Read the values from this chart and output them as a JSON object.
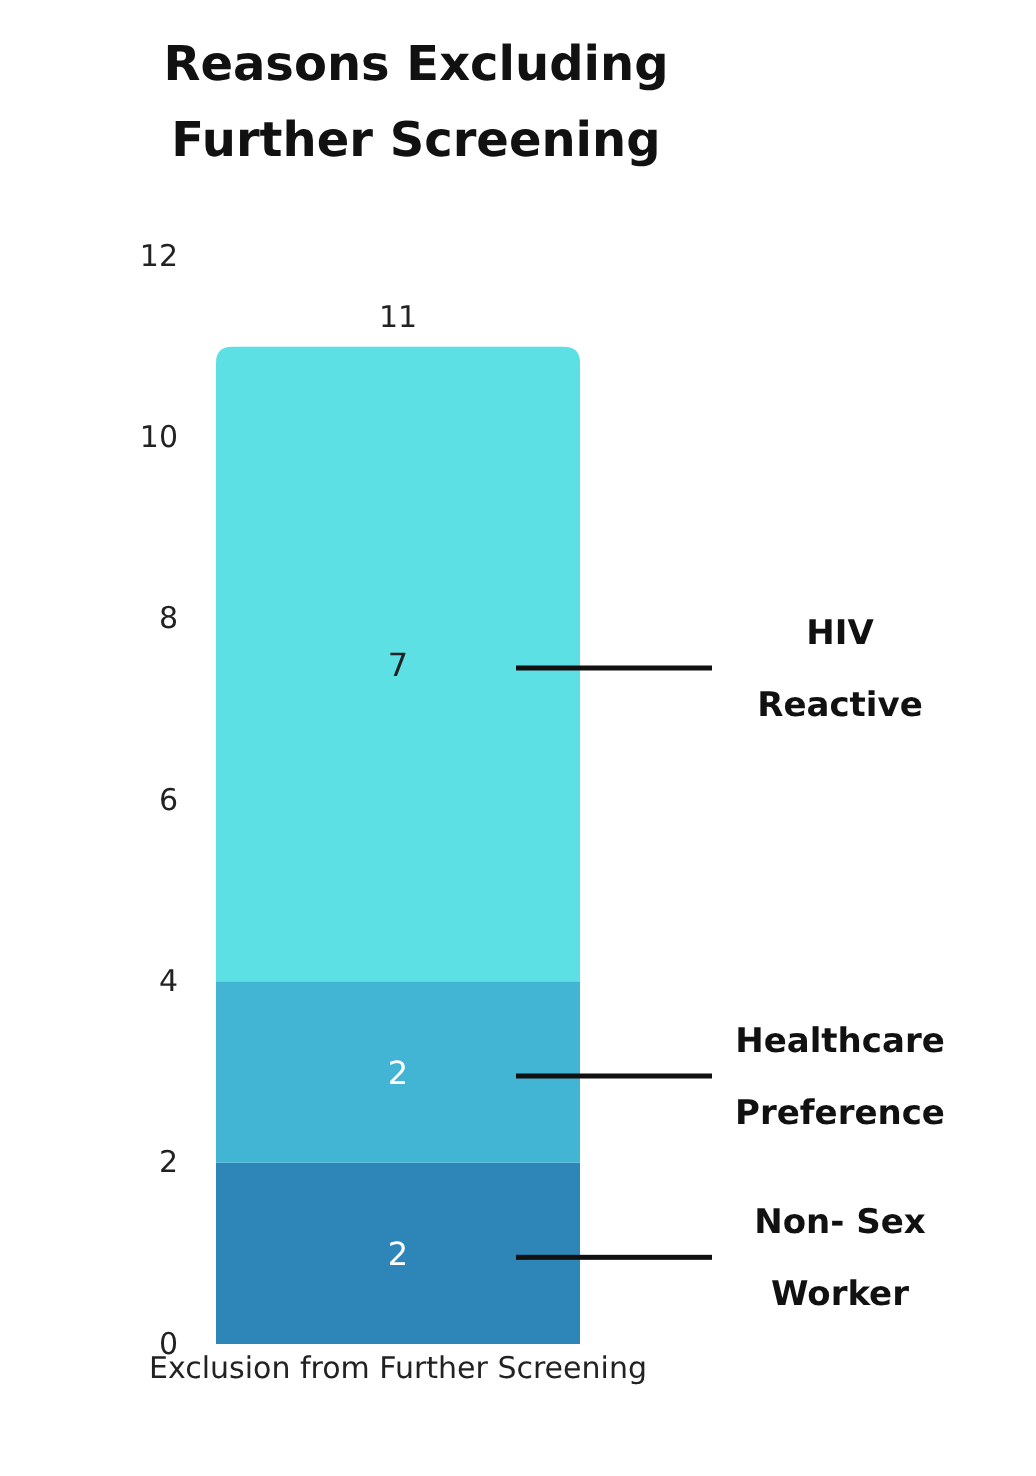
{
  "chart_data": {
    "type": "bar",
    "title": "Reasons Excluding Further Screening",
    "categories": [
      "Exclusion from Further Screening"
    ],
    "series": [
      {
        "name": "Non- Sex Worker",
        "color": "#2e86b8",
        "values": [
          2
        ]
      },
      {
        "name": "Healthcare Preference",
        "color": "#42b4d4",
        "values": [
          2
        ]
      },
      {
        "name": "HIV Reactive",
        "color": "#5ce0e4",
        "values": [
          7
        ]
      }
    ],
    "stacked": true,
    "ylim": [
      0,
      12
    ],
    "yticks": [
      0,
      2,
      4,
      6,
      8,
      10,
      12
    ],
    "legend": false,
    "data_labels": true,
    "totals": [
      "11"
    ]
  }
}
